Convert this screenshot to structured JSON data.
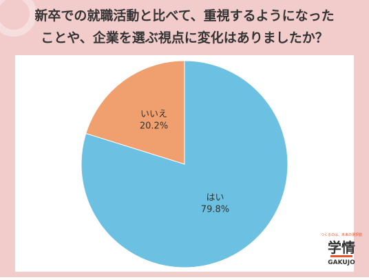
{
  "chart_data": {
    "type": "pie",
    "title": [
      "新卒での就職活動と比べて、重視するようになった",
      "ことや、企業を選ぶ視点に変化はありましたか？"
    ],
    "categories": [
      "はい",
      "いいえ"
    ],
    "values": [
      79.8,
      20.2
    ],
    "value_labels": [
      "79.8%",
      "20.2%"
    ],
    "colors": [
      "#6cc0e2",
      "#f0a06e"
    ]
  },
  "logo": {
    "tagline": "つくるのは、未来の選択肢",
    "name": "学情",
    "romaji": "GAKUJO"
  }
}
